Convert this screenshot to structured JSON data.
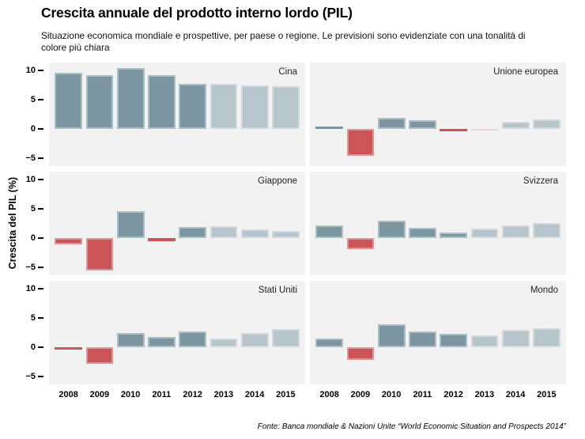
{
  "header": {
    "title": "Crescita annuale del prodotto interno lordo (PIL)",
    "subtitle": "Situazione economica mondiale e prospettive, per paese o regione. Le previsioni sono evidenziate con una tonalità di colore più chiara"
  },
  "footer": {
    "source": "Fonte: Banca mondiale & Nazioni Unite “World Economic Situation and Prospects 2014”"
  },
  "colors": {
    "actual_positive": "#7b96a1",
    "forecast_positive": "#b6c4cb",
    "actual_negative": "#cb5457",
    "forecast_negative": "#edd4d6",
    "panel_bg": "#f2f2f2",
    "axis_text": "#000000"
  },
  "chart_data": {
    "type": "bar",
    "title": "Crescita annuale del prodotto interno lordo (PIL)",
    "ylabel": "Crescita del PIL (%)",
    "xlabel": "",
    "categories": [
      2008,
      2009,
      2010,
      2011,
      2012,
      2013,
      2014,
      2015
    ],
    "forecast_years": [
      2013,
      2014,
      2015
    ],
    "yticks": [
      10,
      5,
      0,
      -5
    ],
    "ylim": [
      -6.3,
      11.4
    ],
    "grid": false,
    "legend": "none",
    "panels": [
      {
        "name": "Cina",
        "values": [
          9.6,
          9.2,
          10.4,
          9.3,
          7.8,
          7.7,
          7.5,
          7.3
        ]
      },
      {
        "name": "Unione europea",
        "values": [
          0.4,
          -4.5,
          2.0,
          1.6,
          -0.4,
          -0.1,
          1.3,
          1.7
        ]
      },
      {
        "name": "Giappone",
        "values": [
          -1.0,
          -5.5,
          4.7,
          -0.5,
          2.0,
          2.1,
          1.5,
          1.2
        ]
      },
      {
        "name": "Svizzera",
        "values": [
          2.2,
          -1.9,
          3.0,
          1.8,
          1.0,
          1.7,
          2.2,
          2.6
        ]
      },
      {
        "name": "Stati Uniti",
        "values": [
          -0.3,
          -2.8,
          2.5,
          1.8,
          2.8,
          1.6,
          2.5,
          3.2
        ]
      },
      {
        "name": "Mondo",
        "values": [
          1.5,
          -2.1,
          4.0,
          2.8,
          2.3,
          2.1,
          3.0,
          3.3
        ]
      }
    ]
  }
}
